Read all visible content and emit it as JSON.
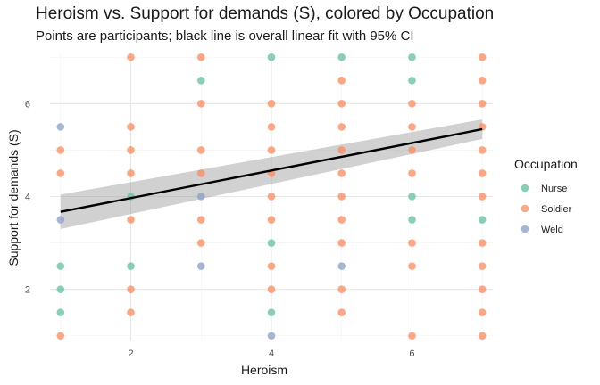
{
  "chart_data": {
    "type": "scatter",
    "title": "Heroism vs. Support for demands (S), colored by Occupation",
    "subtitle": "Points are participants; black line is overall linear fit with 95% CI",
    "xlabel": "Heroism",
    "ylabel": "Support for demands (S)",
    "xlim": [
      0.85,
      7.15
    ],
    "ylim": [
      0.88,
      7.12
    ],
    "x_ticks": [
      2,
      4,
      6
    ],
    "y_ticks": [
      2,
      4,
      6
    ],
    "grid": true,
    "legend": {
      "title": "Occupation",
      "position": "right",
      "entries": [
        {
          "label": "Nurse",
          "color": "#66c2a5"
        },
        {
          "label": "Soldier",
          "color": "#fc8d62"
        },
        {
          "label": "Weld",
          "color": "#8da0cb"
        }
      ]
    },
    "fit_line": {
      "x": [
        1,
        7
      ],
      "y": [
        3.67,
        5.45
      ],
      "ci_low": [
        3.3,
        5.24
      ],
      "ci_high": [
        4.04,
        5.66
      ],
      "color": "#000000"
    },
    "series": [
      {
        "name": "Nurse",
        "color": "#66c2a5",
        "points": [
          [
            1,
            2.5
          ],
          [
            1,
            2
          ],
          [
            1,
            1.5
          ],
          [
            2,
            4
          ],
          [
            2,
            2.5
          ],
          [
            3,
            6.5
          ],
          [
            4,
            7
          ],
          [
            4,
            3
          ],
          [
            4,
            1.5
          ],
          [
            5,
            7
          ],
          [
            6,
            7
          ],
          [
            6,
            6.5
          ],
          [
            6,
            4
          ],
          [
            6,
            3.5
          ],
          [
            7,
            3.5
          ]
        ]
      },
      {
        "name": "Soldier",
        "color": "#fc8d62",
        "points": [
          [
            1,
            5
          ],
          [
            1,
            4.5
          ],
          [
            1,
            1
          ],
          [
            2,
            7
          ],
          [
            2,
            5.5
          ],
          [
            2,
            5
          ],
          [
            2,
            4.5
          ],
          [
            2,
            3.5
          ],
          [
            2,
            2
          ],
          [
            2,
            1.5
          ],
          [
            3,
            7
          ],
          [
            3,
            6
          ],
          [
            3,
            5
          ],
          [
            3,
            4.5
          ],
          [
            3,
            3.5
          ],
          [
            3,
            3
          ],
          [
            4,
            6
          ],
          [
            4,
            5.5
          ],
          [
            4,
            5
          ],
          [
            4,
            4.5
          ],
          [
            4,
            4
          ],
          [
            4,
            3.5
          ],
          [
            4,
            2.5
          ],
          [
            4,
            2
          ],
          [
            5,
            6.5
          ],
          [
            5,
            6
          ],
          [
            5,
            5.5
          ],
          [
            5,
            5
          ],
          [
            5,
            4.5
          ],
          [
            5,
            4
          ],
          [
            5,
            3.5
          ],
          [
            5,
            3
          ],
          [
            5,
            2
          ],
          [
            5,
            1.5
          ],
          [
            6,
            6
          ],
          [
            6,
            5.5
          ],
          [
            6,
            5
          ],
          [
            6,
            4.5
          ],
          [
            6,
            3
          ],
          [
            6,
            2.5
          ],
          [
            6,
            1
          ],
          [
            7,
            7
          ],
          [
            7,
            6.5
          ],
          [
            7,
            6
          ],
          [
            7,
            5.5
          ],
          [
            7,
            5
          ],
          [
            7,
            4.5
          ],
          [
            7,
            4
          ],
          [
            7,
            3
          ],
          [
            7,
            2.5
          ],
          [
            7,
            2
          ],
          [
            7,
            1.5
          ],
          [
            7,
            1
          ]
        ]
      },
      {
        "name": "Weld",
        "color": "#8da0cb",
        "points": [
          [
            1,
            5.5
          ],
          [
            1,
            3.5
          ],
          [
            3,
            4
          ],
          [
            3,
            2.5
          ],
          [
            4,
            1
          ],
          [
            5,
            2.5
          ]
        ]
      }
    ]
  }
}
